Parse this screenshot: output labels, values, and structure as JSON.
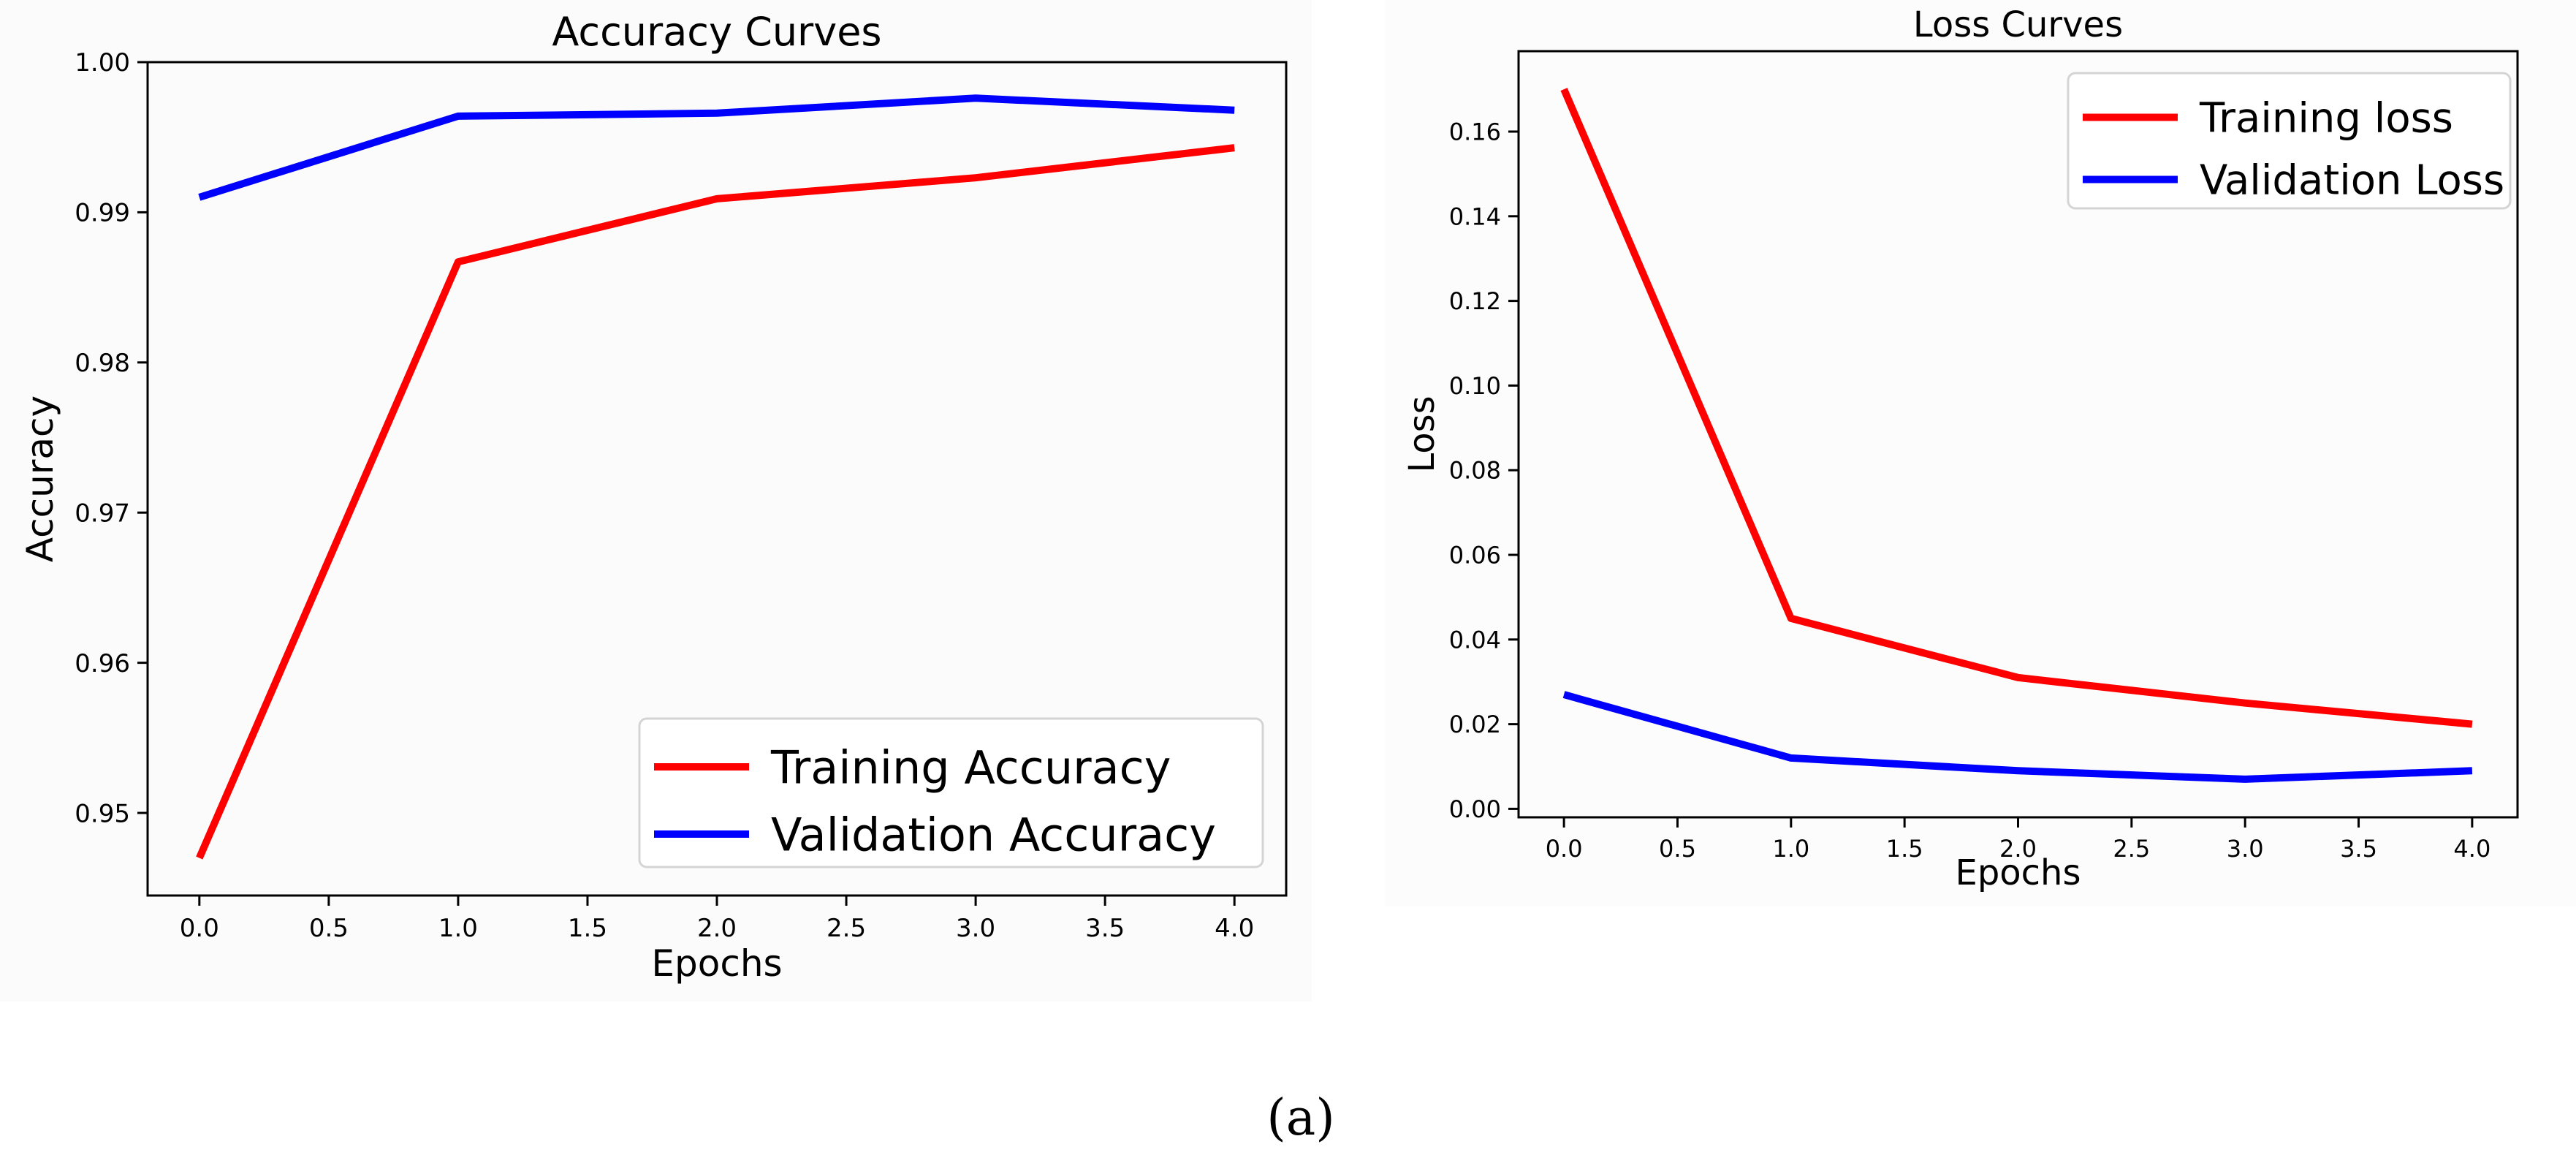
{
  "chart_data": [
    {
      "type": "line",
      "title": "Accuracy Curves",
      "xlabel": "Epochs",
      "ylabel": "Accuracy",
      "xlim": [
        -0.2,
        4.2
      ],
      "ylim": [
        0.9445,
        1.0
      ],
      "xticks": [
        0.0,
        0.5,
        1.0,
        1.5,
        2.0,
        2.5,
        3.0,
        3.5,
        4.0
      ],
      "xticklabels": [
        "0.0",
        "0.5",
        "1.0",
        "1.5",
        "2.0",
        "2.5",
        "3.0",
        "3.5",
        "4.0"
      ],
      "yticks": [
        0.95,
        0.96,
        0.97,
        0.98,
        0.99,
        1.0
      ],
      "yticklabels": [
        "0.95",
        "0.96",
        "0.97",
        "0.98",
        "0.99",
        "1.00"
      ],
      "grid": false,
      "legend_position": "lower-right",
      "x": [
        0,
        1,
        2,
        3,
        4
      ],
      "series": [
        {
          "name": "Training Accuracy",
          "color": "#ff0000",
          "values": [
            0.947,
            0.9867,
            0.9909,
            0.9923,
            0.9943
          ]
        },
        {
          "name": "Validation Accuracy",
          "color": "#0000ff",
          "values": [
            0.991,
            0.9964,
            0.9966,
            0.9976,
            0.9968
          ]
        }
      ]
    },
    {
      "type": "line",
      "title": "Loss Curves",
      "xlabel": "Epochs",
      "ylabel": "Loss",
      "xlim": [
        -0.2,
        4.2
      ],
      "ylim": [
        -0.002,
        0.179
      ],
      "xticks": [
        0.0,
        0.5,
        1.0,
        1.5,
        2.0,
        2.5,
        3.0,
        3.5,
        4.0
      ],
      "xticklabels": [
        "0.0",
        "0.5",
        "1.0",
        "1.5",
        "2.0",
        "2.5",
        "3.0",
        "3.5",
        "4.0"
      ],
      "yticks": [
        0.0,
        0.02,
        0.04,
        0.06,
        0.08,
        0.1,
        0.12,
        0.14,
        0.16
      ],
      "yticklabels": [
        "0.00",
        "0.02",
        "0.04",
        "0.06",
        "0.08",
        "0.10",
        "0.12",
        "0.14",
        "0.16"
      ],
      "grid": false,
      "legend_position": "upper-right",
      "x": [
        0,
        1,
        2,
        3,
        4
      ],
      "series": [
        {
          "name": "Training loss",
          "color": "#ff0000",
          "values": [
            0.17,
            0.045,
            0.031,
            0.025,
            0.02
          ]
        },
        {
          "name": "Validation Loss",
          "color": "#0000ff",
          "values": [
            0.027,
            0.012,
            0.009,
            0.007,
            0.009
          ]
        }
      ]
    }
  ],
  "caption": "(a)"
}
